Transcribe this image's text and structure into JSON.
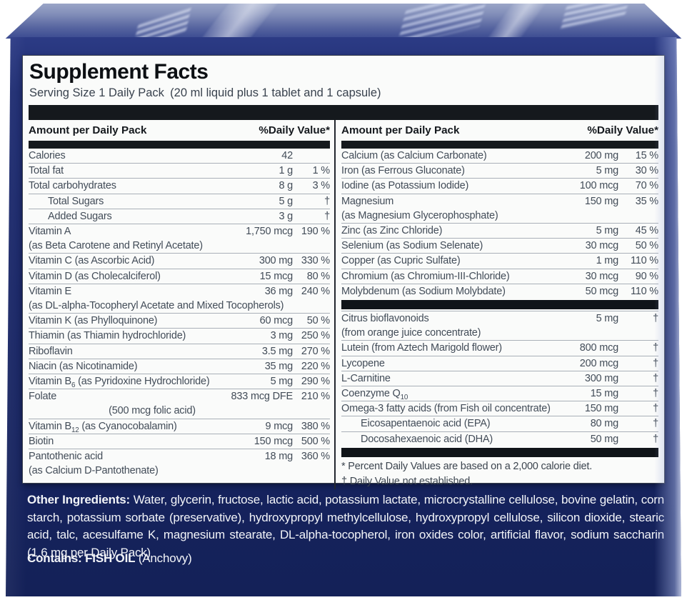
{
  "panel": {
    "title": "Supplement Facts",
    "serving": "Serving Size 1 Daily Pack (20 ml liquid plus 1 tablet and 1 capsule)",
    "col_header": {
      "amount": "Amount per Daily Pack",
      "daily_value": "%Daily Value*"
    },
    "left_rows": [
      {
        "name": "Calories",
        "amount": "42",
        "dv": ""
      },
      {
        "name": "Total fat",
        "amount": "1 g",
        "dv": "1 %"
      },
      {
        "name": "Total carbohydrates",
        "amount": "8 g",
        "dv": "3 %"
      },
      {
        "name": "Total Sugars",
        "amount": "5 g",
        "dv": "†",
        "indent": true
      },
      {
        "name": "Added Sugars",
        "amount": "3 g",
        "dv": "†",
        "indent": true
      },
      {
        "name": "Vitamin A",
        "amount": "1,750 mcg",
        "dv": "190 %",
        "note": "(as Beta Carotene and Retinyl Acetate)"
      },
      {
        "name": "Vitamin C (as Ascorbic Acid)",
        "amount": "300 mg",
        "dv": "330 %"
      },
      {
        "name": "Vitamin D (as Cholecalciferol)",
        "amount": "15 mcg",
        "dv": "80 %"
      },
      {
        "name": "Vitamin E",
        "amount": "36 mg",
        "dv": "240 %",
        "note": "(as DL-alpha-Tocopheryl Acetate and Mixed Tocopherols)"
      },
      {
        "name": "Vitamin K (as Phylloquinone)",
        "amount": "60 mcg",
        "dv": "50 %"
      },
      {
        "name": "Thiamin (as Thiamin hydrochloride)",
        "amount": "3 mg",
        "dv": "250 %"
      },
      {
        "name": "Riboflavin",
        "amount": "3.5 mg",
        "dv": "270 %"
      },
      {
        "name": "Niacin (as Nicotinamide)",
        "amount": "35 mg",
        "dv": "220 %"
      },
      {
        "name": "Vitamin B~6~ (as Pyridoxine Hydrochloride)",
        "amount": "5 mg",
        "dv": "290 %"
      },
      {
        "name": "Folate",
        "amount": "833 mcg DFE",
        "dv": "210 %",
        "note": "(500 mcg folic acid)",
        "note_center": true
      },
      {
        "name": "Vitamin B~12~ (as Cyanocobalamin)",
        "amount": "9 mcg",
        "dv": "380 %"
      },
      {
        "name": "Biotin",
        "amount": "150 mcg",
        "dv": "500 %"
      },
      {
        "name": "Pantothenic acid",
        "amount": "18 mg",
        "dv": "360 %",
        "note": "(as Calcium D-Pantothenate)"
      }
    ],
    "right_rows": [
      {
        "name": "Calcium (as Calcium Carbonate)",
        "amount": "200 mg",
        "dv": "15 %"
      },
      {
        "name": "Iron (as Ferrous Gluconate)",
        "amount": "5 mg",
        "dv": "30 %"
      },
      {
        "name": "Iodine (as Potassium Iodide)",
        "amount": "100 mcg",
        "dv": "70 %"
      },
      {
        "name": "Magnesium",
        "amount": "150 mg",
        "dv": "35 %",
        "note": "(as Magnesium Glycerophosphate)"
      },
      {
        "name": "Zinc (as Zinc Chloride)",
        "amount": "5 mg",
        "dv": "45 %"
      },
      {
        "name": "Selenium (as Sodium Selenate)",
        "amount": "30 mcg",
        "dv": "50 %"
      },
      {
        "name": "Copper (as Cupric Sulfate)",
        "amount": "1 mg",
        "dv": "110 %"
      },
      {
        "name": "Chromium (as Chromium-III-Chloride)",
        "amount": "30 mcg",
        "dv": "90 %"
      },
      {
        "name": "Molybdenum (as Sodium Molybdate)",
        "amount": "50 mcg",
        "dv": "110 %"
      },
      {
        "bar": true
      },
      {
        "name": "Citrus bioflavonoids",
        "amount": "5 mg",
        "dv": "†",
        "note": "(from orange juice concentrate)"
      },
      {
        "name": "Lutein (from Aztech Marigold flower)",
        "amount": "800 mcg",
        "dv": "†"
      },
      {
        "name": "Lycopene",
        "amount": "200 mcg",
        "dv": "†"
      },
      {
        "name": "L-Carnitine",
        "amount": "300 mg",
        "dv": "†"
      },
      {
        "name": "Coenzyme Q~10~",
        "amount": "15 mg",
        "dv": "†"
      },
      {
        "name": "Omega-3 fatty acids (from Fish oil concentrate)",
        "amount": "150 mg",
        "dv": "†"
      },
      {
        "name": "Eicosapentaenoic acid (EPA)",
        "amount": "80 mg",
        "dv": "†",
        "indent": true
      },
      {
        "name": "Docosahexaenoic acid (DHA)",
        "amount": "50 mg",
        "dv": "†",
        "indent": true
      },
      {
        "bar": true
      }
    ],
    "footnotes": [
      "* Percent Daily Values are based on a 2,000 calorie diet.",
      "† Daily Value not established."
    ]
  },
  "other_ingredients": {
    "label": "Other Ingredients:",
    "text": " Water, glycerin, fructose, lactic acid, potassium lactate, microcrystalline cellulose, bovine gelatin, corn starch, potassium sorbate (preservative), hydroxypropyl methylcellulose, hydroxypropyl cellulose, silicon dioxide, stearic acid, talc, acesulfame K, magnesium stearate, DL-alpha-tocopherol, iron oxides color, artificial flavor, sodium saccharin (1.6 mg per Daily Pack)"
  },
  "contains": {
    "label": "Contains: ",
    "allergen": "FISH OIL",
    "detail": " (Anchovy)"
  },
  "colors": {
    "box_navy": "#1a2768",
    "box_top_light": "#9aa5c7",
    "label_bg": "#fafbfa",
    "bar_black": "#15191d",
    "row_text": "#424c58",
    "white_text": "#f2f4f8"
  }
}
